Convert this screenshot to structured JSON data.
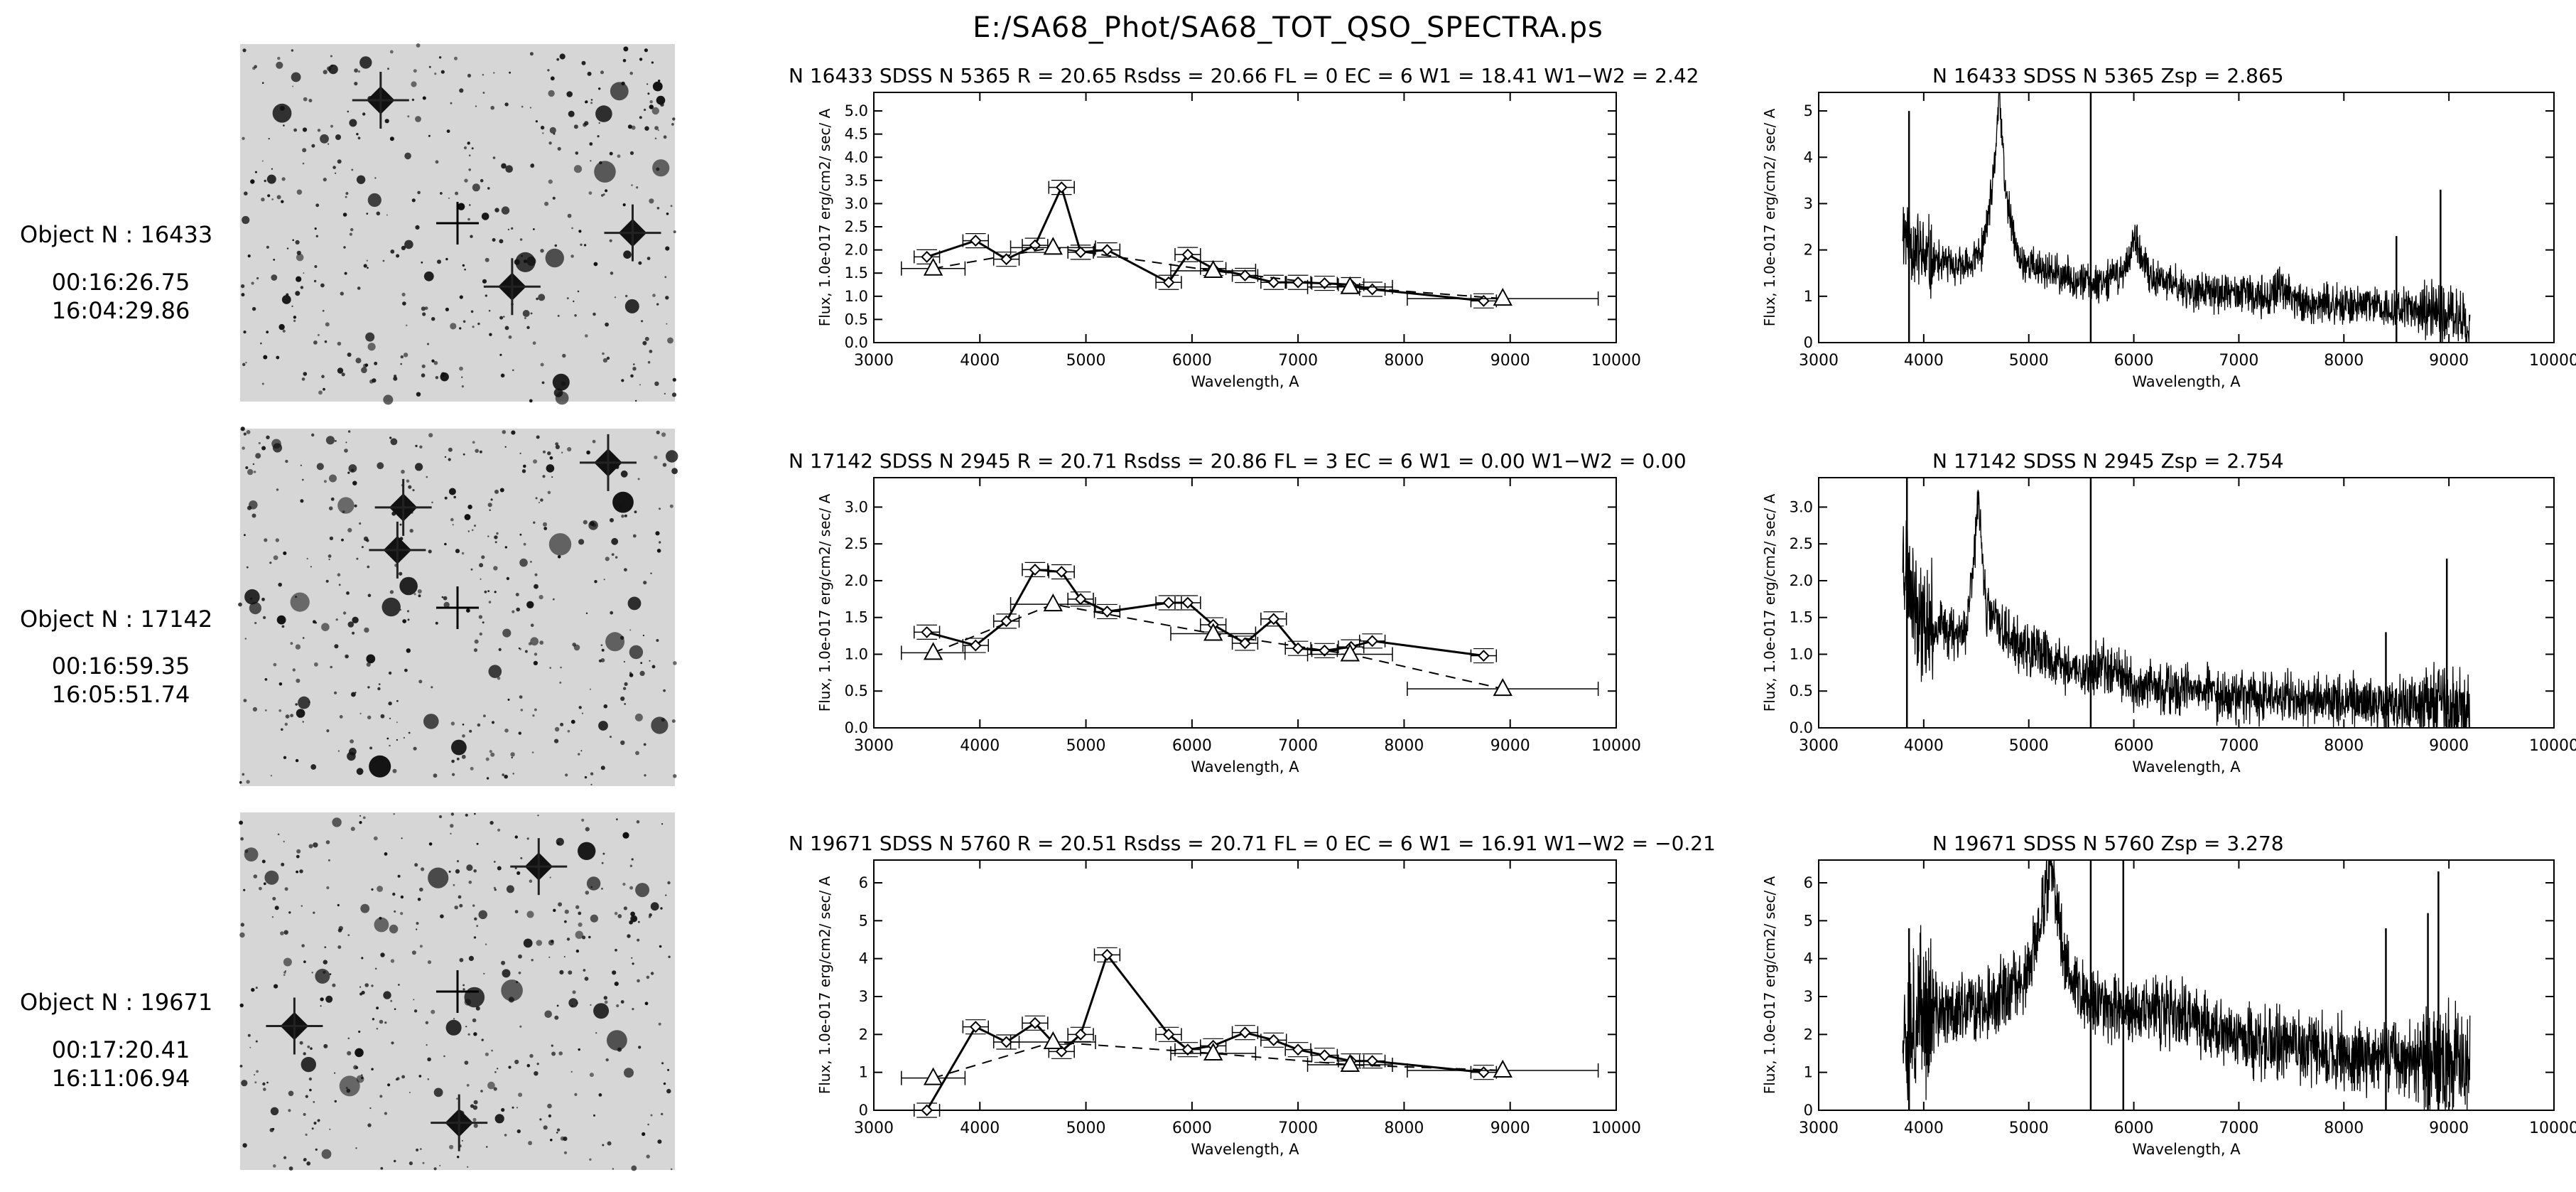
{
  "title": "E:/SA68_Phot/SA68_TOT_QSO_SPECTRA.ps",
  "objects": [
    {
      "label": "Object N : 16433",
      "ra": "00:16:26.75",
      "dec": "16:04:29.86",
      "phot_header": "N 16433   SDSS N 5365  R = 20.65  Rsdss = 20.66  FL = 0  EC =   6  W1 = 18.41  W1−W2 =   2.42",
      "spec_header": "N 16433    SDSS N 5365              Zsp =     2.865"
    },
    {
      "label": "Object N : 17142",
      "ra": "00:16:59.35",
      "dec": "16:05:51.74",
      "phot_header": "N 17142   SDSS N 2945  R = 20.71  Rsdss = 20.86  FL = 3  EC =   6  W1 =   0.00  W1−W2 =   0.00",
      "spec_header": "N 17142    SDSS N 2945              Zsp =     2.754"
    },
    {
      "label": "Object N : 19671",
      "ra": "00:17:20.41",
      "dec": "16:11:06.94",
      "phot_header": "N 19671   SDSS N 5760  R = 20.51  Rsdss = 20.71  FL = 0  EC =   6  W1 = 16.91  W1−W2 = −0.21",
      "spec_header": "N 19671    SDSS N 5760              Zsp =     3.278"
    }
  ],
  "chart_data": [
    {
      "type": "line",
      "panel": "photometry",
      "object": "16433",
      "xlabel": "Wavelength, A",
      "ylabel": "Flux, 1.0e-017 erg/cm2/ sec/ A",
      "xlim": [
        3000,
        10000
      ],
      "ylim": [
        0,
        5.4
      ],
      "xticks": [
        3000,
        4000,
        5000,
        6000,
        7000,
        8000,
        9000,
        10000
      ],
      "yticks": [
        0,
        0.5,
        1,
        1.5,
        2,
        2.5,
        3,
        3.5,
        4,
        4.5,
        5
      ],
      "series": [
        {
          "name": "photometry",
          "x": [
            3500,
            3960,
            4250,
            4520,
            4770,
            4950,
            5200,
            5780,
            5960,
            6200,
            6500,
            6770,
            7000,
            7250,
            7500,
            7700,
            8750
          ],
          "y": [
            1.85,
            2.2,
            1.8,
            2.1,
            3.35,
            1.95,
            2.0,
            1.3,
            1.9,
            1.6,
            1.45,
            1.3,
            1.3,
            1.28,
            1.25,
            1.15,
            0.9
          ],
          "xerr": [
            120,
            120,
            120,
            120,
            120,
            120,
            120,
            120,
            120,
            120,
            120,
            120,
            120,
            120,
            120,
            120,
            120
          ]
        },
        {
          "name": "sdss",
          "x": [
            3560,
            4690,
            6200,
            7490,
            8930
          ],
          "y": [
            1.6,
            2.05,
            1.55,
            1.2,
            0.95
          ],
          "xerr": [
            300,
            400,
            400,
            400,
            900
          ]
        }
      ]
    },
    {
      "type": "line",
      "panel": "spectrum",
      "object": "16433",
      "xlabel": "Wavelength, A",
      "ylabel": "Flux, 1.0e-017 erg/cm2/ sec/ A",
      "xlim": [
        3000,
        10000
      ],
      "ylim": [
        0,
        5.4
      ],
      "xticks": [
        3000,
        4000,
        5000,
        6000,
        7000,
        8000,
        9000,
        10000
      ],
      "yticks": [
        0,
        1,
        2,
        3,
        4,
        5
      ],
      "range": [
        3800,
        9200
      ],
      "continuum": [
        [
          3800,
          2.5
        ],
        [
          4000,
          1.8
        ],
        [
          4400,
          1.6
        ],
        [
          4560,
          2.0
        ],
        [
          4660,
          3.4
        ],
        [
          4720,
          5.4
        ],
        [
          4780,
          3.2
        ],
        [
          4900,
          1.8
        ],
        [
          5200,
          1.5
        ],
        [
          5600,
          1.3
        ],
        [
          5900,
          1.5
        ],
        [
          6000,
          2.2
        ],
        [
          6150,
          1.4
        ],
        [
          6600,
          1.1
        ],
        [
          7300,
          1.0
        ],
        [
          7400,
          1.2
        ],
        [
          7600,
          0.85
        ],
        [
          8200,
          0.8
        ],
        [
          8800,
          0.7
        ],
        [
          9200,
          0.5
        ]
      ],
      "noise": 0.35,
      "spikes": [
        [
          3860,
          5.0
        ],
        [
          5590,
          5.4
        ],
        [
          8920,
          3.3
        ],
        [
          8500,
          2.3
        ]
      ]
    },
    {
      "type": "line",
      "panel": "photometry",
      "object": "17142",
      "xlabel": "Wavelength, A",
      "ylabel": "Flux, 1.0e-017 erg/cm2/ sec/ A",
      "xlim": [
        3000,
        10000
      ],
      "ylim": [
        0,
        3.4
      ],
      "xticks": [
        3000,
        4000,
        5000,
        6000,
        7000,
        8000,
        9000,
        10000
      ],
      "yticks": [
        0,
        0.5,
        1,
        1.5,
        2,
        2.5,
        3
      ],
      "series": [
        {
          "name": "photometry",
          "x": [
            3500,
            3960,
            4250,
            4520,
            4770,
            4950,
            5200,
            5780,
            5960,
            6200,
            6500,
            6770,
            7000,
            7250,
            7500,
            7700,
            8750
          ],
          "y": [
            1.3,
            1.12,
            1.45,
            2.15,
            2.12,
            1.75,
            1.58,
            1.7,
            1.7,
            1.4,
            1.15,
            1.48,
            1.08,
            1.05,
            1.1,
            1.18,
            0.98
          ],
          "xerr": [
            120,
            120,
            120,
            120,
            120,
            120,
            120,
            120,
            120,
            120,
            120,
            120,
            120,
            120,
            120,
            120,
            120
          ]
        },
        {
          "name": "sdss",
          "x": [
            3560,
            4690,
            6200,
            7490,
            8930
          ],
          "y": [
            1.02,
            1.68,
            1.28,
            1.0,
            0.53
          ],
          "xerr": [
            300,
            400,
            400,
            400,
            900
          ]
        }
      ]
    },
    {
      "type": "line",
      "panel": "spectrum",
      "object": "17142",
      "xlabel": "Wavelength, A",
      "ylabel": "Flux, 1.0e-017 erg/cm2/ sec/ A",
      "xlim": [
        3000,
        10000
      ],
      "ylim": [
        0,
        3.4
      ],
      "xticks": [
        3000,
        4000,
        5000,
        6000,
        7000,
        8000,
        9000,
        10000
      ],
      "yticks": [
        0,
        0.5,
        1,
        1.5,
        2,
        2.5,
        3
      ],
      "range": [
        3800,
        9200
      ],
      "continuum": [
        [
          3800,
          2.4
        ],
        [
          4000,
          1.4
        ],
        [
          4400,
          1.3
        ],
        [
          4520,
          3.0
        ],
        [
          4600,
          1.6
        ],
        [
          4900,
          1.1
        ],
        [
          5500,
          0.75
        ],
        [
          5800,
          0.85
        ],
        [
          6000,
          0.55
        ],
        [
          7000,
          0.45
        ],
        [
          8000,
          0.38
        ],
        [
          8800,
          0.3
        ],
        [
          9200,
          0.25
        ]
      ],
      "noise": 0.3,
      "spikes": [
        [
          3840,
          3.4
        ],
        [
          5590,
          3.4
        ],
        [
          8980,
          2.3
        ],
        [
          8400,
          1.3
        ]
      ]
    },
    {
      "type": "line",
      "panel": "photometry",
      "object": "19671",
      "xlabel": "Wavelength, A",
      "ylabel": "Flux, 1.0e-017 erg/cm2/ sec/ A",
      "xlim": [
        3000,
        10000
      ],
      "ylim": [
        0,
        6.6
      ],
      "xticks": [
        3000,
        4000,
        5000,
        6000,
        7000,
        8000,
        9000,
        10000
      ],
      "yticks": [
        0,
        1,
        2,
        3,
        4,
        5,
        6
      ],
      "series": [
        {
          "name": "photometry",
          "x": [
            3500,
            3960,
            4250,
            4520,
            4770,
            4950,
            5200,
            5780,
            5960,
            6200,
            6500,
            6770,
            7000,
            7250,
            7500,
            7700,
            8750
          ],
          "y": [
            0.0,
            2.2,
            1.8,
            2.3,
            1.55,
            2.0,
            4.1,
            2.0,
            1.6,
            1.7,
            2.05,
            1.85,
            1.6,
            1.45,
            1.3,
            1.3,
            1.0
          ],
          "xerr": [
            120,
            120,
            120,
            120,
            120,
            120,
            120,
            120,
            120,
            120,
            120,
            120,
            120,
            120,
            120,
            120,
            120
          ]
        },
        {
          "name": "sdss",
          "x": [
            3560,
            4690,
            6200,
            7490,
            8930
          ],
          "y": [
            0.85,
            1.8,
            1.5,
            1.2,
            1.05
          ],
          "xerr": [
            300,
            400,
            400,
            400,
            900
          ]
        }
      ]
    },
    {
      "type": "line",
      "panel": "spectrum",
      "object": "19671",
      "xlabel": "Wavelength, A",
      "ylabel": "Flux, 1.0e-017 erg/cm2/ sec/ A",
      "xlim": [
        3000,
        10000
      ],
      "ylim": [
        0,
        6.6
      ],
      "xticks": [
        3000,
        4000,
        5000,
        6000,
        7000,
        8000,
        9000,
        10000
      ],
      "yticks": [
        0,
        1,
        2,
        3,
        4,
        5,
        6
      ],
      "range": [
        3800,
        9200
      ],
      "continuum": [
        [
          3800,
          2.5
        ],
        [
          4200,
          2.6
        ],
        [
          4600,
          2.8
        ],
        [
          5000,
          3.5
        ],
        [
          5200,
          6.4
        ],
        [
          5350,
          4.0
        ],
        [
          5500,
          3.0
        ],
        [
          6000,
          2.6
        ],
        [
          6500,
          2.5
        ],
        [
          7000,
          1.9
        ],
        [
          7500,
          1.7
        ],
        [
          8000,
          1.5
        ],
        [
          8500,
          1.4
        ],
        [
          9200,
          1.2
        ]
      ],
      "noise": 0.8,
      "spikes": [
        [
          5590,
          6.6
        ],
        [
          5900,
          6.6
        ],
        [
          8900,
          6.3
        ],
        [
          8400,
          4.8
        ],
        [
          8800,
          5.2
        ],
        [
          3860,
          4.8
        ]
      ]
    }
  ]
}
